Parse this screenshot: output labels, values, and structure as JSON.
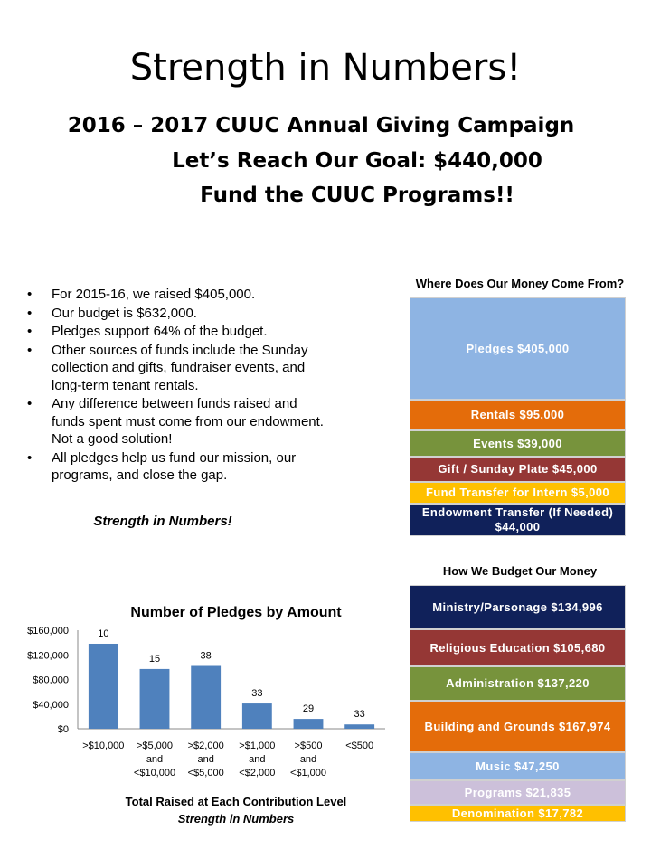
{
  "header": {
    "title": "Strength in Numbers!",
    "subtitle_1": "2016 – 2017 CUUC Annual Giving Campaign",
    "subtitle_2": "Let’s Reach Our Goal:  $440,000",
    "subtitle_3": "Fund the CUUC Programs!!"
  },
  "bullets": [
    "For 2015-16, we raised $405,000.",
    "Our budget is $632,000.",
    "Pledges support 64% of the budget.",
    "Other sources of funds include the Sunday collection and gifts, fundraiser events, and long-term tenant rentals.",
    " Any difference between funds raised and funds spent must come from our endowment.   Not a good solution!",
    "All pledges help us fund our mission, our programs, and close the gap."
  ],
  "tagline": "Strength in Numbers!",
  "sources": {
    "title": "Where Does Our Money Come From?",
    "items": [
      {
        "label": "Pledges $405,000",
        "color": "#8eb4e3"
      },
      {
        "label": "Rentals $95,000",
        "color": "#e46c0a"
      },
      {
        "label": "Events $39,000",
        "color": "#77933c"
      },
      {
        "label": "Gift / Sunday Plate $45,000",
        "color": "#953735"
      },
      {
        "label": "Fund Transfer for Intern $5,000",
        "color": "#ffc000"
      },
      {
        "label": "Endowment Transfer (If Needed) $44,000",
        "color": "#10215a"
      }
    ]
  },
  "budget": {
    "title": "How We Budget Our Money",
    "items": [
      {
        "label": "Ministry/Parsonage $134,996",
        "color": "#10215a"
      },
      {
        "label": "Religious Education $105,680",
        "color": "#953735"
      },
      {
        "label": "Administration $137,220",
        "color": "#77933c"
      },
      {
        "label": "Building and Grounds $167,974",
        "color": "#e46c0a"
      },
      {
        "label": "Music $47,250",
        "color": "#8eb4e3"
      },
      {
        "label": "Programs $21,835",
        "color": "#ccc0da"
      },
      {
        "label": "Denomination $17,782",
        "color": "#ffc000"
      }
    ]
  },
  "chart_data": {
    "type": "bar",
    "title": "Number of Pledges by Amount",
    "categories": [
      ">$10,000",
      ">$5,000 and <$10,000",
      ">$2,000 and <$5,000",
      ">$1,000 and <$2,000",
      ">$500 and <$1,000",
      "<$500"
    ],
    "category_lines": [
      [
        ">$10,000"
      ],
      [
        ">$5,000",
        "and",
        "<$10,000"
      ],
      [
        ">$2,000",
        "and",
        "<$5,000"
      ],
      [
        ">$1,000",
        "and",
        "<$2,000"
      ],
      [
        ">$500",
        "and",
        "<$1,000"
      ],
      [
        "<$500"
      ]
    ],
    "values": [
      138000,
      97000,
      102000,
      41000,
      16000,
      7000
    ],
    "data_labels": [
      "10",
      "15",
      "38",
      "33",
      "29",
      "33"
    ],
    "yticks": [
      "$0",
      "$40,000",
      "$80,000",
      "$120,000",
      "$160,000"
    ],
    "ylim": [
      0,
      160000
    ],
    "grid": false,
    "bar_color": "#4f81bd",
    "footer_1": "Total Raised at Each Contribution Level",
    "footer_2": "Strength in Numbers"
  }
}
